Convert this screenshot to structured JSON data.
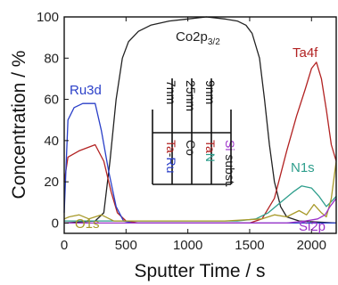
{
  "chart_data": {
    "type": "line",
    "xlabel": "Sputter Time / s",
    "ylabel": "Concentration / %",
    "xlim": [
      0,
      2200
    ],
    "ylim": [
      -5,
      100
    ],
    "xticks": [
      0,
      500,
      1000,
      1500,
      2000
    ],
    "yticks": [
      0,
      20,
      40,
      60,
      80,
      100
    ],
    "grid": false,
    "series": [
      {
        "name": "Co2p3/2",
        "color": "#222222",
        "label_parts": [
          "Co2p",
          "3/2"
        ],
        "points": [
          [
            0,
            0
          ],
          [
            250,
            1
          ],
          [
            320,
            5
          ],
          [
            370,
            30
          ],
          [
            420,
            60
          ],
          [
            470,
            80
          ],
          [
            520,
            88
          ],
          [
            600,
            93
          ],
          [
            700,
            96
          ],
          [
            850,
            98
          ],
          [
            1000,
            99
          ],
          [
            1150,
            100
          ],
          [
            1300,
            99
          ],
          [
            1400,
            98
          ],
          [
            1470,
            96
          ],
          [
            1520,
            92
          ],
          [
            1580,
            80
          ],
          [
            1620,
            60
          ],
          [
            1660,
            38
          ],
          [
            1700,
            20
          ],
          [
            1750,
            8
          ],
          [
            1800,
            3
          ],
          [
            1900,
            1
          ],
          [
            2200,
            0
          ]
        ]
      },
      {
        "name": "Ta4f",
        "color": "#b22222",
        "points": [
          [
            0,
            20
          ],
          [
            30,
            32
          ],
          [
            120,
            35
          ],
          [
            250,
            38
          ],
          [
            320,
            30
          ],
          [
            380,
            15
          ],
          [
            430,
            5
          ],
          [
            500,
            1
          ],
          [
            600,
            0
          ],
          [
            1500,
            0
          ],
          [
            1600,
            2
          ],
          [
            1700,
            12
          ],
          [
            1800,
            35
          ],
          [
            1880,
            52
          ],
          [
            1950,
            65
          ],
          [
            2000,
            75
          ],
          [
            2040,
            78
          ],
          [
            2080,
            70
          ],
          [
            2120,
            55
          ],
          [
            2160,
            38
          ],
          [
            2200,
            30
          ]
        ]
      },
      {
        "name": "Ru3d",
        "color": "#2a3fc8",
        "points": [
          [
            0,
            5
          ],
          [
            30,
            50
          ],
          [
            80,
            56
          ],
          [
            150,
            58
          ],
          [
            250,
            58
          ],
          [
            300,
            45
          ],
          [
            360,
            25
          ],
          [
            420,
            8
          ],
          [
            480,
            1
          ],
          [
            550,
            0
          ],
          [
            2200,
            0
          ]
        ]
      },
      {
        "name": "N1s",
        "color": "#2e9e8c",
        "points": [
          [
            0,
            1
          ],
          [
            500,
            1
          ],
          [
            1400,
            1
          ],
          [
            1550,
            2
          ],
          [
            1650,
            5
          ],
          [
            1750,
            10
          ],
          [
            1850,
            15
          ],
          [
            1920,
            18
          ],
          [
            2000,
            17
          ],
          [
            2060,
            13
          ],
          [
            2120,
            8
          ],
          [
            2170,
            11
          ],
          [
            2200,
            13
          ]
        ]
      },
      {
        "name": "O1s",
        "color": "#a89a2a",
        "points": [
          [
            0,
            2
          ],
          [
            40,
            3
          ],
          [
            120,
            4
          ],
          [
            200,
            2
          ],
          [
            300,
            4
          ],
          [
            400,
            1
          ],
          [
            600,
            1
          ],
          [
            900,
            1
          ],
          [
            1300,
            1
          ],
          [
            1600,
            2
          ],
          [
            1700,
            4
          ],
          [
            1800,
            3
          ],
          [
            1900,
            6
          ],
          [
            1960,
            4
          ],
          [
            2020,
            9
          ],
          [
            2080,
            5
          ],
          [
            2120,
            3
          ],
          [
            2160,
            12
          ],
          [
            2200,
            30
          ]
        ]
      },
      {
        "name": "Si2p",
        "color": "#9b30c8",
        "points": [
          [
            0,
            0
          ],
          [
            500,
            0
          ],
          [
            1800,
            0
          ],
          [
            1950,
            1
          ],
          [
            2050,
            2
          ],
          [
            2110,
            4
          ],
          [
            2150,
            8
          ],
          [
            2200,
            12
          ]
        ]
      }
    ],
    "labels": {
      "co": "Co2p",
      "co_sub": "3/2",
      "ta4f": "Ta4f",
      "ru3d": "Ru3d",
      "n1s": "N1s",
      "o1s": "O1s",
      "si2p": "Si2p"
    },
    "layer_stack": [
      {
        "thickness": "7nm",
        "material_parts": [
          {
            "text": "Ta",
            "color": "#b22222"
          },
          {
            "text": "-",
            "color": "#222222"
          },
          {
            "text": "Ru",
            "color": "#2a3fc8"
          }
        ]
      },
      {
        "thickness": "25nm",
        "material_parts": [
          {
            "text": "Co",
            "color": "#222222"
          }
        ]
      },
      {
        "thickness": "9nm",
        "material_parts": [
          {
            "text": "Ta",
            "color": "#b22222"
          },
          {
            "text": "N",
            "color": "#2e9e8c"
          }
        ]
      },
      {
        "thickness": "",
        "material_parts": [
          {
            "text": "Si",
            "color": "#9b30c8"
          },
          {
            "text": " subst.",
            "color": "#222222"
          }
        ]
      }
    ]
  }
}
